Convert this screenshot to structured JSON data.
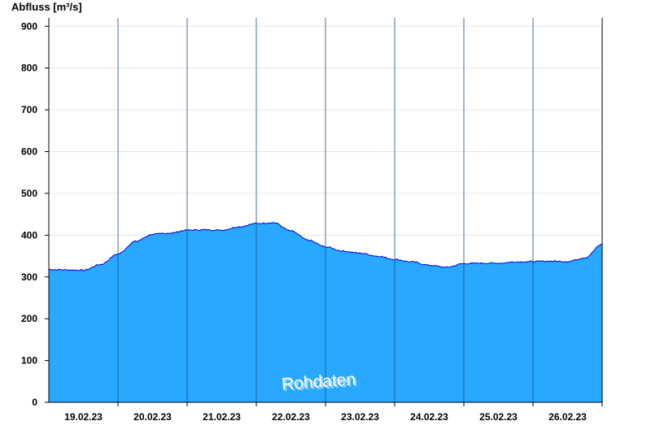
{
  "chart_data": {
    "type": "area",
    "ylabel": "Abfluss [m³/s]",
    "ylim": [
      0,
      920
    ],
    "yticks": [
      0,
      100,
      200,
      300,
      400,
      500,
      600,
      700,
      800,
      900
    ],
    "x_range": [
      "18.02.23 12:00",
      "26.02.23 12:00"
    ],
    "x_ticks": [
      "19.02.23",
      "20.02.23",
      "21.02.23",
      "22.02.23",
      "23.02.23",
      "24.02.23",
      "25.02.23",
      "26.02.23"
    ],
    "day_separators": [
      "19.02.23 12:00",
      "20.02.23 12:00",
      "21.02.23 12:00",
      "22.02.23 12:00",
      "23.02.23 12:00",
      "24.02.23 12:00",
      "25.02.23 12:00",
      "26.02.23 12:00"
    ],
    "grid": true,
    "fill_color": "#29a8ff",
    "line_color": "#0000cc",
    "annotation": "Rohdaten",
    "series": [
      {
        "x": [
          "18.02.23 12:00",
          "18.02.23 18:00",
          "19.02.23 00:00",
          "19.02.23 06:00",
          "19.02.23 12:00",
          "19.02.23 18:00",
          "20.02.23 00:00",
          "20.02.23 06:00",
          "20.02.23 12:00",
          "20.02.23 18:00",
          "21.02.23 00:00",
          "21.02.23 06:00",
          "21.02.23 12:00",
          "21.02.23 18:00",
          "22.02.23 00:00",
          "22.02.23 06:00",
          "22.02.23 12:00",
          "22.02.23 18:00",
          "23.02.23 00:00",
          "23.02.23 06:00",
          "23.02.23 12:00",
          "23.02.23 18:00",
          "24.02.23 00:00",
          "24.02.23 06:00",
          "24.02.23 12:00",
          "24.02.23 18:00",
          "25.02.23 00:00",
          "25.02.23 06:00",
          "25.02.23 12:00",
          "25.02.23 18:00",
          "26.02.23 00:00",
          "26.02.23 06:00",
          "26.02.23 12:00"
        ],
        "values": [
          318,
          317,
          316,
          330,
          355,
          385,
          402,
          405,
          412,
          413,
          412,
          420,
          428,
          430,
          410,
          388,
          372,
          362,
          357,
          350,
          342,
          336,
          328,
          323,
          332,
          333,
          333,
          336,
          337,
          338,
          337,
          346,
          378
        ]
      }
    ]
  }
}
